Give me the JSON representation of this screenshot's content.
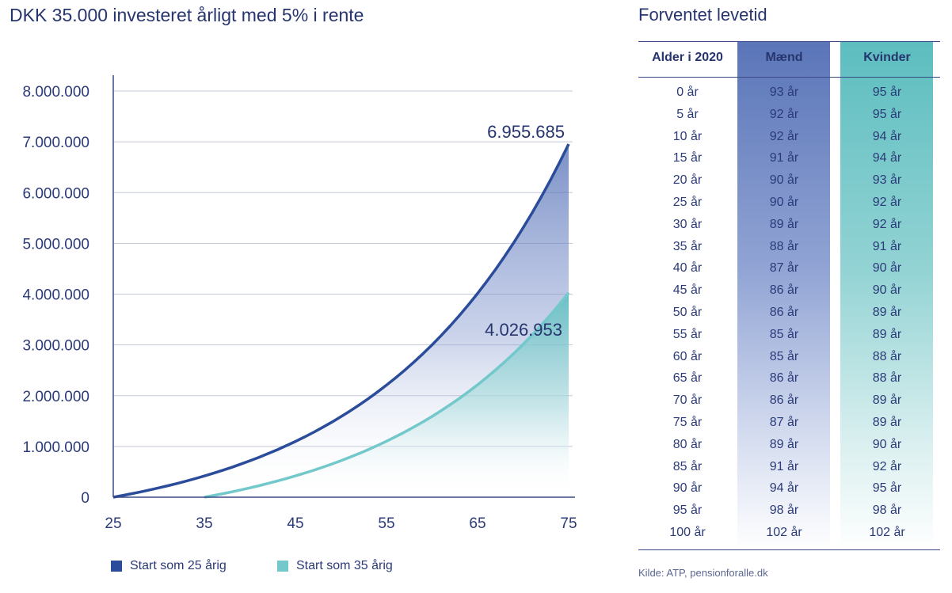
{
  "chart_data": {
    "type": "area",
    "title": "DKK 35.000 investeret årligt med 5% i rente",
    "xlabel": "",
    "ylabel": "",
    "xlim": [
      25,
      75
    ],
    "ylim": [
      0,
      8000000
    ],
    "x_ticks": [
      "25",
      "35",
      "45",
      "55",
      "65",
      "75"
    ],
    "y_ticks": [
      "0",
      "1.000.000",
      "2.000.000",
      "3.000.000",
      "4.000.000",
      "5.000.000",
      "6.000.000",
      "7.000.000",
      "8.000.000"
    ],
    "series": [
      {
        "name": "Start som 25 årig",
        "color": "#2b4c9b",
        "start_age": 25,
        "annual": 35000,
        "rate": 0.05,
        "end_value": 6955685,
        "end_label": "6.955.685"
      },
      {
        "name": "Start som 35 årig",
        "color": "#72c8ca",
        "start_age": 35,
        "annual": 35000,
        "rate": 0.05,
        "end_value": 4026953,
        "end_label": "4.026.953"
      }
    ]
  },
  "table": {
    "title": "Forventet levetid",
    "headers": [
      "Alder i 2020",
      "Mænd",
      "Kvinder"
    ],
    "rows": [
      [
        "0 år",
        "93 år",
        "95 år"
      ],
      [
        "5 år",
        "92 år",
        "95 år"
      ],
      [
        "10 år",
        "92 år",
        "94 år"
      ],
      [
        "15 år",
        "91 år",
        "94 år"
      ],
      [
        "20 år",
        "90 år",
        "93 år"
      ],
      [
        "25 år",
        "90 år",
        "92 år"
      ],
      [
        "30 år",
        "89 år",
        "92 år"
      ],
      [
        "35 år",
        "88 år",
        "91 år"
      ],
      [
        "40 år",
        "87 år",
        "90 år"
      ],
      [
        "45 år",
        "86 år",
        "90 år"
      ],
      [
        "50 år",
        "86 år",
        "89 år"
      ],
      [
        "55 år",
        "85 år",
        "89 år"
      ],
      [
        "60 år",
        "85 år",
        "88 år"
      ],
      [
        "65 år",
        "86 år",
        "88 år"
      ],
      [
        "70 år",
        "86 år",
        "89 år"
      ],
      [
        "75 år",
        "87 år",
        "89 år"
      ],
      [
        "80 år",
        "89 år",
        "90 år"
      ],
      [
        "85 år",
        "91 år",
        "92 år"
      ],
      [
        "90 år",
        "94 år",
        "95 år"
      ],
      [
        "95 år",
        "98 år",
        "98 år"
      ],
      [
        "100 år",
        "102 år",
        "102 år"
      ]
    ],
    "source": "Kilde: ATP, pensionforalle.dk"
  }
}
